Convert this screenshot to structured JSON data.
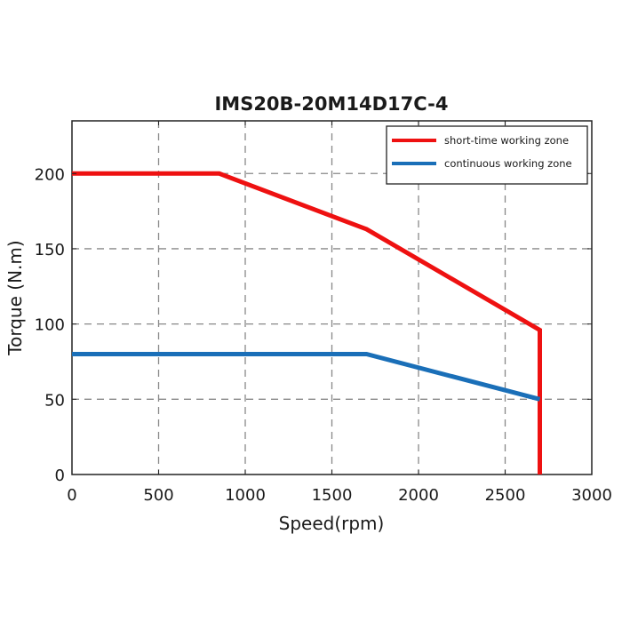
{
  "chart_data": {
    "type": "line",
    "title": "IMS20B-20M14D17C-4",
    "xlabel": "Speed(rpm)",
    "ylabel": "Torque (N.m)",
    "xlim": [
      0,
      3000
    ],
    "ylim": [
      0,
      235
    ],
    "xticks": [
      0,
      500,
      1000,
      1500,
      2000,
      2500,
      3000
    ],
    "yticks": [
      0,
      50,
      100,
      150,
      200
    ],
    "grid": true,
    "grid_style": "dashed",
    "legend_position": "upper right",
    "series": [
      {
        "name": "short-time working zone",
        "color": "#ee1111",
        "x": [
          0,
          850,
          1700,
          2700,
          2700
        ],
        "y": [
          200,
          200,
          163,
          96,
          0
        ]
      },
      {
        "name": "continuous working zone",
        "color": "#1a6fb8",
        "x": [
          0,
          1700,
          2700
        ],
        "y": [
          80,
          80,
          50
        ]
      }
    ]
  }
}
